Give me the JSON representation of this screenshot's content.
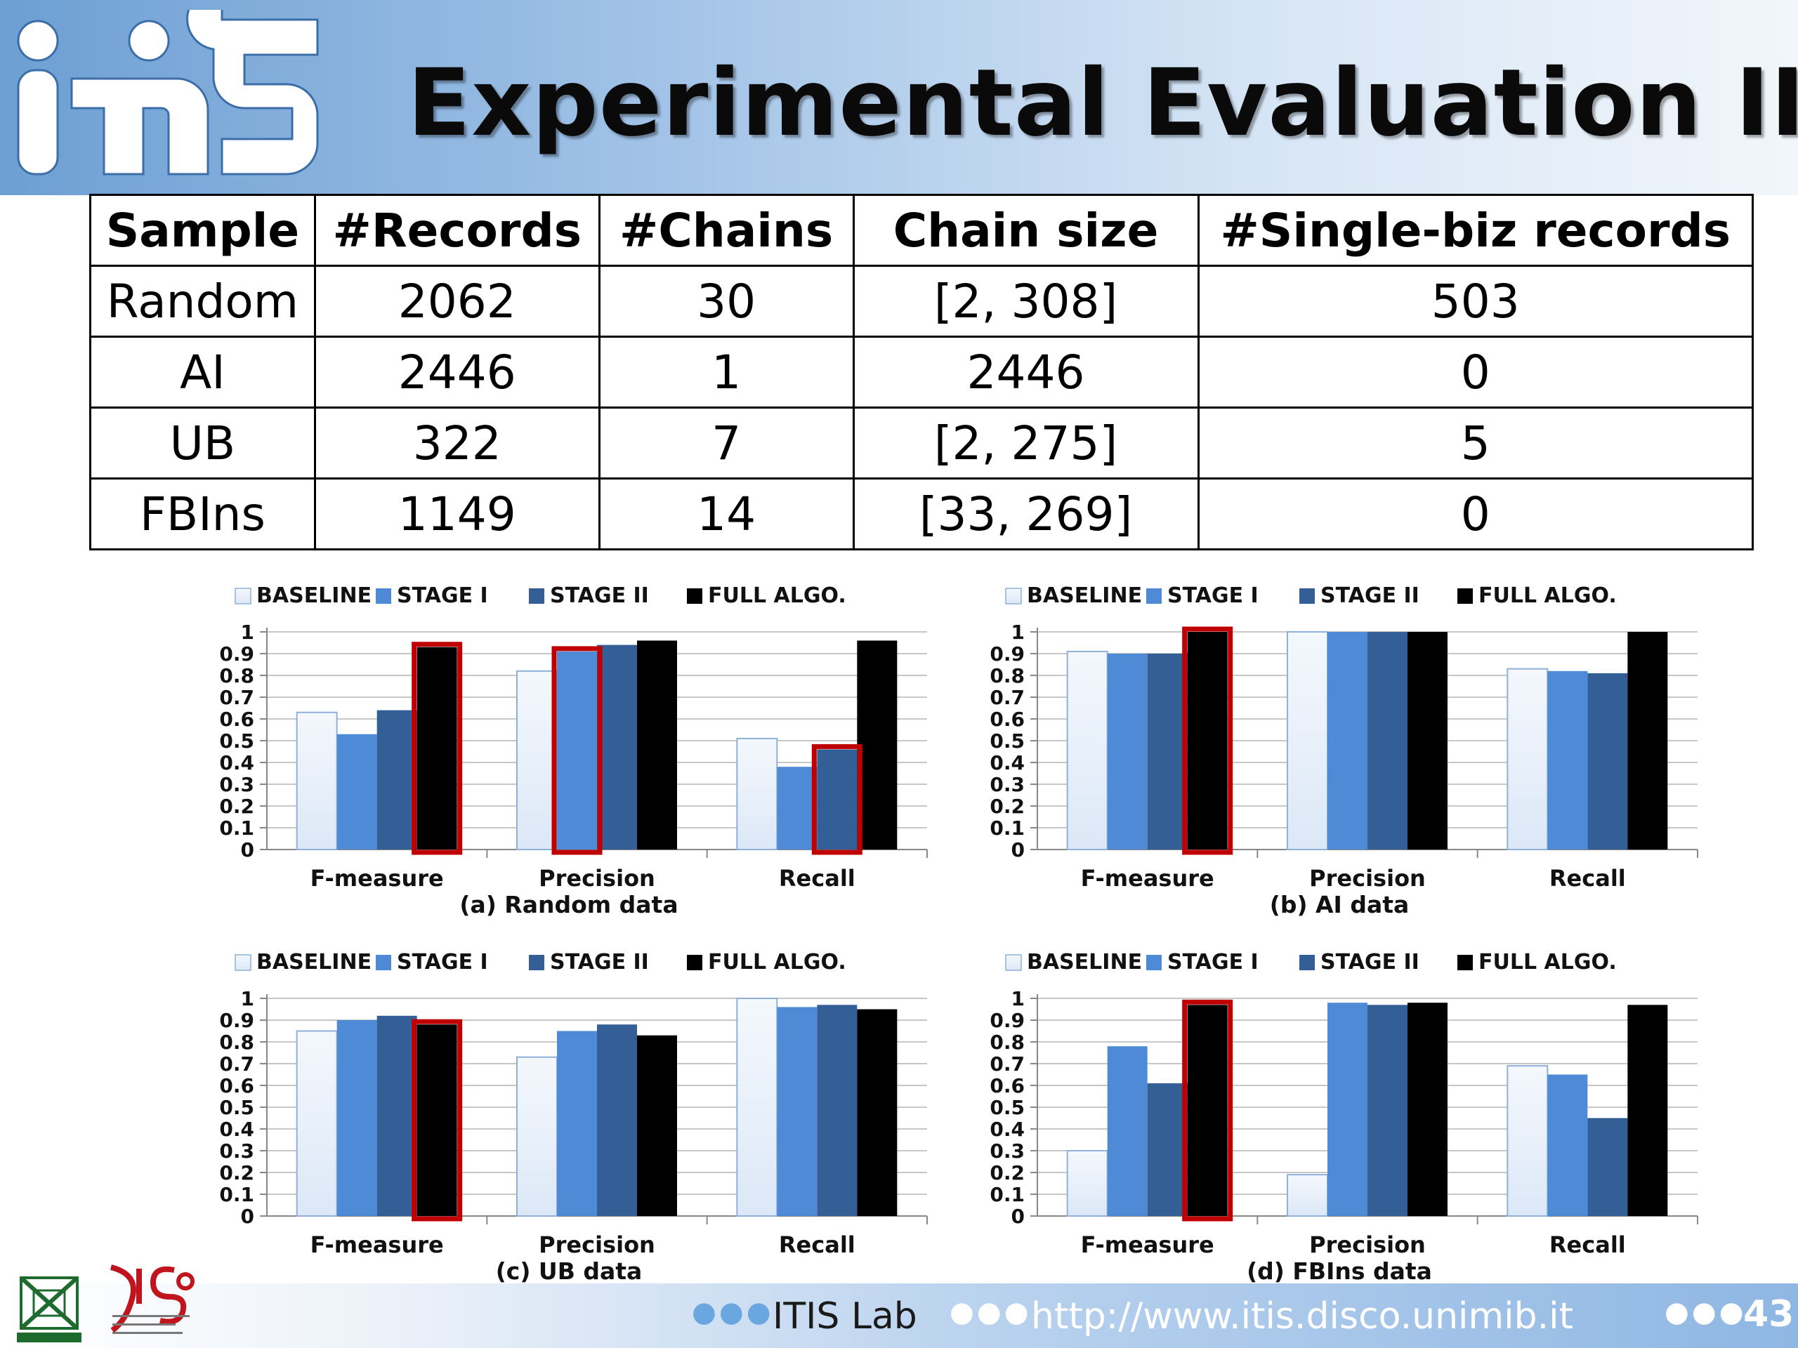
{
  "slide": {
    "title": "Experimental Evaluation II",
    "page_number": "43",
    "footer_lab": "ITIS Lab",
    "footer_url": "http://www.itis.disco.unimib.it"
  },
  "table": {
    "headers": [
      "Sample",
      "#Records",
      "#Chains",
      "Chain size",
      "#Single-biz records"
    ],
    "rows": [
      [
        "Random",
        "2062",
        "30",
        "[2, 308]",
        "503"
      ],
      [
        "AI",
        "2446",
        "1",
        "2446",
        "0"
      ],
      [
        "UB",
        "322",
        "7",
        "[2, 275]",
        "5"
      ],
      [
        "FBIns",
        "1149",
        "14",
        "[33, 269]",
        "0"
      ]
    ]
  },
  "colors": {
    "baseline": "#dce8f7",
    "stage1": "#4f8ad6",
    "stage2": "#345f96",
    "full": "#000000",
    "highlight": "#c00000"
  },
  "chart_data": [
    {
      "type": "bar",
      "caption": "(a) Random data",
      "categories": [
        "F-measure",
        "Precision",
        "Recall"
      ],
      "legend": [
        "BASELINE",
        "STAGE I",
        "STAGE II",
        "FULL ALGO."
      ],
      "ylim": [
        0,
        1
      ],
      "yticks": [
        "0",
        "0.1",
        "0.2",
        "0.3",
        "0.4",
        "0.5",
        "0.6",
        "0.7",
        "0.8",
        "0.9",
        "1"
      ],
      "series": [
        {
          "name": "BASELINE",
          "values": [
            0.63,
            0.82,
            0.51
          ]
        },
        {
          "name": "STAGE I",
          "values": [
            0.53,
            0.91,
            0.38
          ]
        },
        {
          "name": "STAGE II",
          "values": [
            0.64,
            0.94,
            0.46
          ]
        },
        {
          "name": "FULL ALGO.",
          "values": [
            0.93,
            0.96,
            0.96
          ]
        }
      ],
      "highlights": [
        [
          0,
          3
        ],
        [
          1,
          1
        ],
        [
          2,
          2
        ]
      ]
    },
    {
      "type": "bar",
      "caption": "(b) AI data",
      "categories": [
        "F-measure",
        "Precision",
        "Recall"
      ],
      "legend": [
        "BASELINE",
        "STAGE I",
        "STAGE II",
        "FULL ALGO."
      ],
      "ylim": [
        0,
        1
      ],
      "yticks": [
        "0",
        "0.1",
        "0.2",
        "0.3",
        "0.4",
        "0.5",
        "0.6",
        "0.7",
        "0.8",
        "0.9",
        "1"
      ],
      "series": [
        {
          "name": "BASELINE",
          "values": [
            0.91,
            1.0,
            0.83
          ]
        },
        {
          "name": "STAGE I",
          "values": [
            0.9,
            1.0,
            0.82
          ]
        },
        {
          "name": "STAGE II",
          "values": [
            0.9,
            1.0,
            0.81
          ]
        },
        {
          "name": "FULL ALGO.",
          "values": [
            1.0,
            1.0,
            1.0
          ]
        }
      ],
      "highlights": [
        [
          0,
          3
        ]
      ]
    },
    {
      "type": "bar",
      "caption": "(c) UB data",
      "categories": [
        "F-measure",
        "Precision",
        "Recall"
      ],
      "legend": [
        "BASELINE",
        "STAGE I",
        "STAGE II",
        "FULL ALGO."
      ],
      "ylim": [
        0,
        1
      ],
      "yticks": [
        "0",
        "0.1",
        "0.2",
        "0.3",
        "0.4",
        "0.5",
        "0.6",
        "0.7",
        "0.8",
        "0.9",
        "1"
      ],
      "series": [
        {
          "name": "BASELINE",
          "values": [
            0.85,
            0.73,
            1.0
          ]
        },
        {
          "name": "STAGE I",
          "values": [
            0.9,
            0.85,
            0.96
          ]
        },
        {
          "name": "STAGE II",
          "values": [
            0.92,
            0.88,
            0.97
          ]
        },
        {
          "name": "FULL ALGO.",
          "values": [
            0.88,
            0.83,
            0.95
          ]
        }
      ],
      "highlights": [
        [
          0,
          3
        ]
      ]
    },
    {
      "type": "bar",
      "caption": "(d) FBIns data",
      "categories": [
        "F-measure",
        "Precision",
        "Recall"
      ],
      "legend": [
        "BASELINE",
        "STAGE I",
        "STAGE II",
        "FULL ALGO."
      ],
      "ylim": [
        0,
        1
      ],
      "yticks": [
        "0",
        "0.1",
        "0.2",
        "0.3",
        "0.4",
        "0.5",
        "0.6",
        "0.7",
        "0.8",
        "0.9",
        "1"
      ],
      "series": [
        {
          "name": "BASELINE",
          "values": [
            0.3,
            0.19,
            0.69
          ]
        },
        {
          "name": "STAGE I",
          "values": [
            0.78,
            0.98,
            0.65
          ]
        },
        {
          "name": "STAGE II",
          "values": [
            0.61,
            0.97,
            0.45
          ]
        },
        {
          "name": "FULL ALGO.",
          "values": [
            0.97,
            0.98,
            0.97
          ]
        }
      ],
      "highlights": [
        [
          0,
          3
        ]
      ]
    }
  ]
}
